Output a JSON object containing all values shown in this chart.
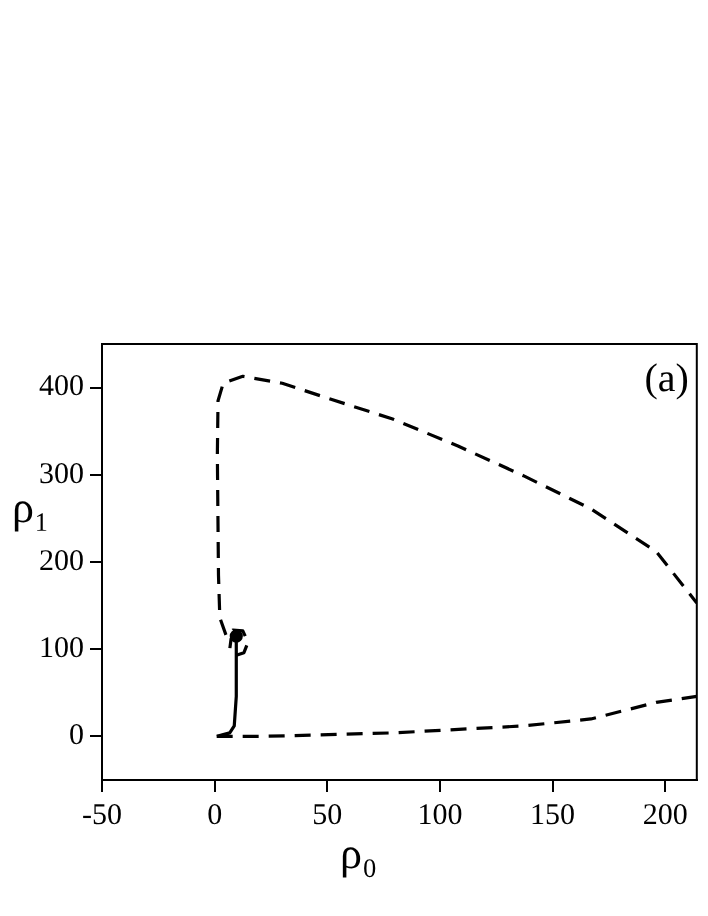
{
  "chart_data": {
    "type": "line",
    "xlabel": "ρ₀",
    "ylabel": "ρ₁",
    "annotations": [
      "(a)"
    ],
    "xlim": [
      -50,
      214
    ],
    "xticks": [
      -50,
      0,
      50,
      100,
      150,
      200
    ],
    "ylim": [
      -50,
      450
    ],
    "yticks": [
      0,
      100,
      200,
      300,
      400
    ],
    "grid": false,
    "legend": false,
    "marker": "none",
    "series": [
      {
        "color": "#000000",
        "line_style": "dashed",
        "x": [
          10.2,
          7.3,
          6.7,
          9.6,
          13,
          14.8,
          12.5,
          8.1,
          5.2,
          2.3,
          1.7,
          1.2,
          1.5,
          3.8,
          12.5,
          30,
          50,
          79,
          108,
          137,
          167,
          196,
          214
        ],
        "values": [
          112,
          112,
          100,
          93,
          96,
          108,
          121,
          122,
          115,
          136,
          185,
          323,
          385,
          405,
          413,
          405,
          388,
          364,
          333,
          299,
          261,
          212,
          153
        ]
      },
      {
        "color": "#000000",
        "line_style": "dashed",
        "x": [
          0.9,
          21,
          79,
          137,
          167,
          196,
          214
        ],
        "values": [
          0,
          0,
          4,
          12,
          20,
          39,
          46
        ]
      },
      {
        "color": "#000000",
        "line_style": "solid",
        "x": [
          1,
          6.7,
          8.7,
          9.6,
          9.6,
          9.6
        ],
        "values": [
          0,
          4,
          12,
          46,
          88,
          112
        ]
      },
      {
        "type": "scatter",
        "color": "#000000",
        "marker": "circle",
        "x": [
          9.6
        ],
        "values": [
          115
        ]
      }
    ]
  }
}
